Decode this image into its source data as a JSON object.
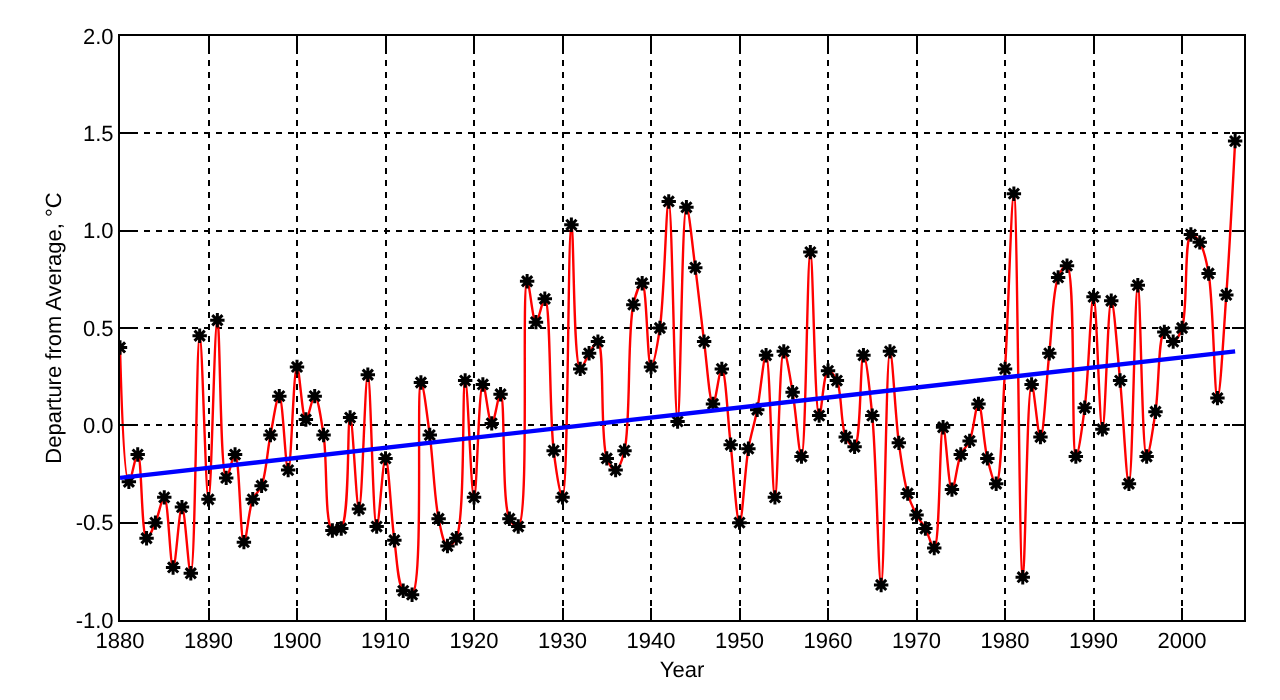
{
  "chart_data": {
    "type": "line",
    "xlabel": "Year",
    "ylabel": "Departure from Average, °C",
    "x": [
      1880,
      1881,
      1882,
      1883,
      1884,
      1885,
      1886,
      1887,
      1888,
      1889,
      1890,
      1891,
      1892,
      1893,
      1894,
      1895,
      1896,
      1897,
      1898,
      1899,
      1900,
      1901,
      1902,
      1903,
      1904,
      1905,
      1906,
      1907,
      1908,
      1909,
      1910,
      1911,
      1912,
      1913,
      1914,
      1915,
      1916,
      1917,
      1918,
      1919,
      1920,
      1921,
      1922,
      1923,
      1924,
      1925,
      1926,
      1927,
      1928,
      1929,
      1930,
      1931,
      1932,
      1933,
      1934,
      1935,
      1936,
      1937,
      1938,
      1939,
      1940,
      1941,
      1942,
      1943,
      1944,
      1945,
      1946,
      1947,
      1948,
      1949,
      1950,
      1951,
      1952,
      1953,
      1954,
      1955,
      1956,
      1957,
      1958,
      1959,
      1960,
      1961,
      1962,
      1963,
      1964,
      1965,
      1966,
      1967,
      1968,
      1969,
      1970,
      1971,
      1972,
      1973,
      1974,
      1975,
      1976,
      1977,
      1978,
      1979,
      1980,
      1981,
      1982,
      1983,
      1984,
      1985,
      1986,
      1987,
      1988,
      1989,
      1990,
      1991,
      1992,
      1993,
      1994,
      1995,
      1996,
      1997,
      1998,
      1999,
      2000,
      2001,
      2002,
      2003,
      2004,
      2005,
      2006
    ],
    "series": [
      {
        "color": "#ff0000",
        "values": [
          0.4,
          -0.29,
          -0.15,
          -0.58,
          -0.5,
          -0.37,
          -0.73,
          -0.42,
          -0.76,
          0.46,
          -0.38,
          0.54,
          -0.27,
          -0.15,
          -0.6,
          -0.38,
          -0.31,
          -0.05,
          0.15,
          -0.23,
          0.3,
          0.03,
          0.15,
          -0.05,
          -0.54,
          -0.53,
          0.04,
          -0.43,
          0.26,
          -0.52,
          -0.17,
          -0.59,
          -0.85,
          -0.87,
          0.22,
          -0.05,
          -0.48,
          -0.62,
          -0.58,
          0.23,
          -0.37,
          0.21,
          0.01,
          0.16,
          -0.48,
          -0.52,
          0.74,
          0.53,
          0.65,
          -0.13,
          -0.37,
          1.03,
          0.29,
          0.37,
          0.43,
          -0.17,
          -0.23,
          -0.13,
          0.62,
          0.73,
          0.3,
          0.5,
          1.15,
          0.02,
          1.12,
          0.81,
          0.43,
          0.11,
          0.29,
          -0.1,
          -0.5,
          -0.12,
          0.08,
          0.36,
          -0.37,
          0.38,
          0.17,
          -0.16,
          0.89,
          0.05,
          0.28,
          0.23,
          -0.06,
          -0.11,
          0.36,
          0.05,
          -0.82,
          0.38,
          -0.09,
          -0.35,
          -0.46,
          -0.53,
          -0.63,
          -0.01,
          -0.33,
          -0.15,
          -0.08,
          0.11,
          -0.17,
          -0.3,
          0.29,
          1.19,
          -0.78,
          0.21,
          -0.06,
          0.37,
          0.76,
          0.82,
          -0.16,
          0.09,
          0.66,
          -0.02,
          0.64,
          0.23,
          -0.3,
          0.72,
          -0.16,
          0.07,
          0.48,
          0.43,
          0.5,
          0.98,
          0.94,
          0.78,
          0.14,
          0.67,
          1.46
        ]
      },
      {
        "color": "#0000ff",
        "marker": "none",
        "x": [
          1880,
          2006
        ],
        "values": [
          -0.27,
          0.38
        ]
      }
    ],
    "marker": "cross",
    "line_style": "solid",
    "xlim": [
      1880,
      2007
    ],
    "xticks": [
      1880,
      1890,
      1900,
      1910,
      1920,
      1930,
      1940,
      1950,
      1960,
      1970,
      1980,
      1990,
      2000
    ],
    "ylim": [
      -1.0,
      2.0
    ],
    "yticks": [
      {
        "value": -1.0,
        "label": "-1.0"
      },
      {
        "value": -0.5,
        "label": "-0.5"
      },
      {
        "value": 0.0,
        "label": "0.0"
      },
      {
        "value": 0.5,
        "label": "0.5"
      },
      {
        "value": 1.0,
        "label": "1.0"
      },
      {
        "value": 1.5,
        "label": "1.5"
      },
      {
        "value": 2.0,
        "label": "2.0"
      }
    ],
    "grid": true
  }
}
